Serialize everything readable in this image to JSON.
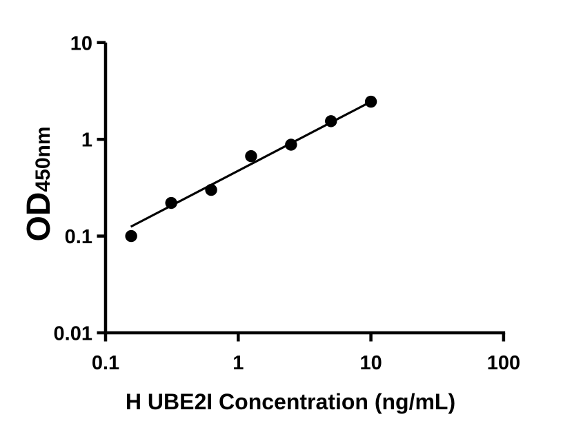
{
  "figure": {
    "background_color": "#ffffff",
    "ink_color": "#000000"
  },
  "chart_data": {
    "type": "scatter",
    "title": "",
    "xlabel": "H UBE2I Concentration (ng/mL)",
    "ylabel_main": "OD",
    "ylabel_sub": "450nm",
    "x_scale": "log",
    "y_scale": "log",
    "xlim": [
      0.1,
      100
    ],
    "ylim": [
      0.01,
      10
    ],
    "x_tick_values": [
      0.1,
      1,
      10,
      100
    ],
    "x_tick_labels": [
      "0.1",
      "1",
      "10",
      "100"
    ],
    "y_tick_values": [
      10,
      1,
      0.1,
      0.01
    ],
    "y_tick_labels": [
      "10",
      "1",
      "0.1",
      "0.01"
    ],
    "grid": false,
    "legend": "none",
    "series": [
      {
        "marker": "filled-circle",
        "color": "#000000",
        "x": [
          0.156,
          0.3125,
          0.625,
          1.25,
          2.5,
          5.0,
          10.0
        ],
        "od": [
          0.1,
          0.22,
          0.3,
          0.67,
          0.88,
          1.54,
          2.45
        ]
      }
    ],
    "fit_line": {
      "color": "#000000",
      "x_start": 0.155,
      "od_start": 0.125,
      "x_end": 10.0,
      "od_end": 2.45
    }
  }
}
